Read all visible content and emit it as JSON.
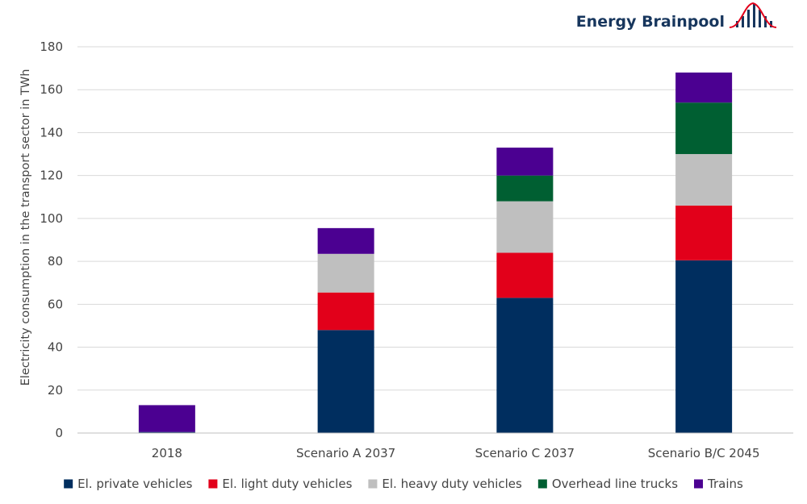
{
  "logo": {
    "text": "Energy Brainpool"
  },
  "colors": {
    "private": "#002e5f",
    "light": "#e2001a",
    "heavy": "#bfbfbf",
    "overhead": "#005f32",
    "trains": "#4b0091",
    "grid": "#d9d9d9",
    "axis": "#bfbfbf",
    "logo": "#17365d",
    "logo_arc": "#e2001a"
  },
  "chart_data": {
    "type": "bar",
    "stacked": true,
    "title": "",
    "xlabel": "",
    "ylabel": "Electricity consumption in the transport sector in TWh",
    "ylim": [
      0,
      180
    ],
    "yticks": [
      0,
      20,
      40,
      60,
      80,
      100,
      120,
      140,
      160,
      180
    ],
    "grid": true,
    "legend_position": "bottom",
    "categories": [
      "2018",
      "Scenario A 2037",
      "Scenario C 2037",
      "Scenario B/C 2045"
    ],
    "series": [
      {
        "name": "El. private vehicles",
        "color_key": "private",
        "values": [
          0.5,
          48,
          63,
          80.5
        ]
      },
      {
        "name": "El. light duty vehicles",
        "color_key": "light",
        "values": [
          0,
          17.5,
          21,
          25.5
        ]
      },
      {
        "name": "El. heavy duty vehicles",
        "color_key": "heavy",
        "values": [
          0,
          18,
          24,
          24
        ]
      },
      {
        "name": "Overhead line trucks",
        "color_key": "overhead",
        "values": [
          0,
          0,
          12,
          24
        ]
      },
      {
        "name": "Trains",
        "color_key": "trains",
        "values": [
          12.5,
          12,
          13,
          14
        ]
      }
    ]
  }
}
